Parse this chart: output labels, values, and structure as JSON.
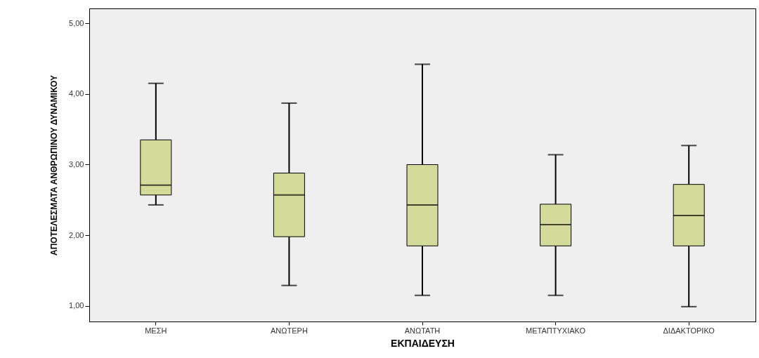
{
  "chart_data": {
    "type": "box",
    "xlabel": "ΕΚΠΑΙΔΕΥΣΗ",
    "ylabel": "ΑΠΟΤΕΛΕΣΜΑΤΑ ΑΝΘΡΩΠΙΝΟΥ ΔΥΝΑΜΙΚΟΥ",
    "categories": [
      "ΜΕΣΗ",
      "ΑΝΩΤΕΡΗ",
      "ΑΝΩΤΑΤΗ",
      "ΜΕΤΑΠΤΥΧΙΑΚΟ",
      "ΔΙΔΑΚΤΟΡΙΚΟ"
    ],
    "ylim": [
      0.78,
      5.21
    ],
    "yticks": [
      {
        "value": 1,
        "label": "1,00"
      },
      {
        "value": 2,
        "label": "2,00"
      },
      {
        "value": 3,
        "label": "3,00"
      },
      {
        "value": 4,
        "label": "4,00"
      },
      {
        "value": 5,
        "label": "5,00"
      }
    ],
    "grid": false,
    "series": [
      {
        "color": "#d3da9a",
        "boxes": [
          {
            "low": 2.43,
            "q1": 2.57,
            "median": 2.71,
            "q3": 3.35,
            "high": 4.15
          },
          {
            "low": 1.29,
            "q1": 1.98,
            "median": 2.57,
            "q3": 2.88,
            "high": 3.87
          },
          {
            "low": 1.15,
            "q1": 1.85,
            "median": 2.43,
            "q3": 3.0,
            "high": 4.42
          },
          {
            "low": 1.15,
            "q1": 1.85,
            "median": 2.15,
            "q3": 2.44,
            "high": 3.14
          },
          {
            "low": 0.99,
            "q1": 1.85,
            "median": 2.28,
            "q3": 2.72,
            "high": 3.27
          }
        ]
      }
    ]
  }
}
